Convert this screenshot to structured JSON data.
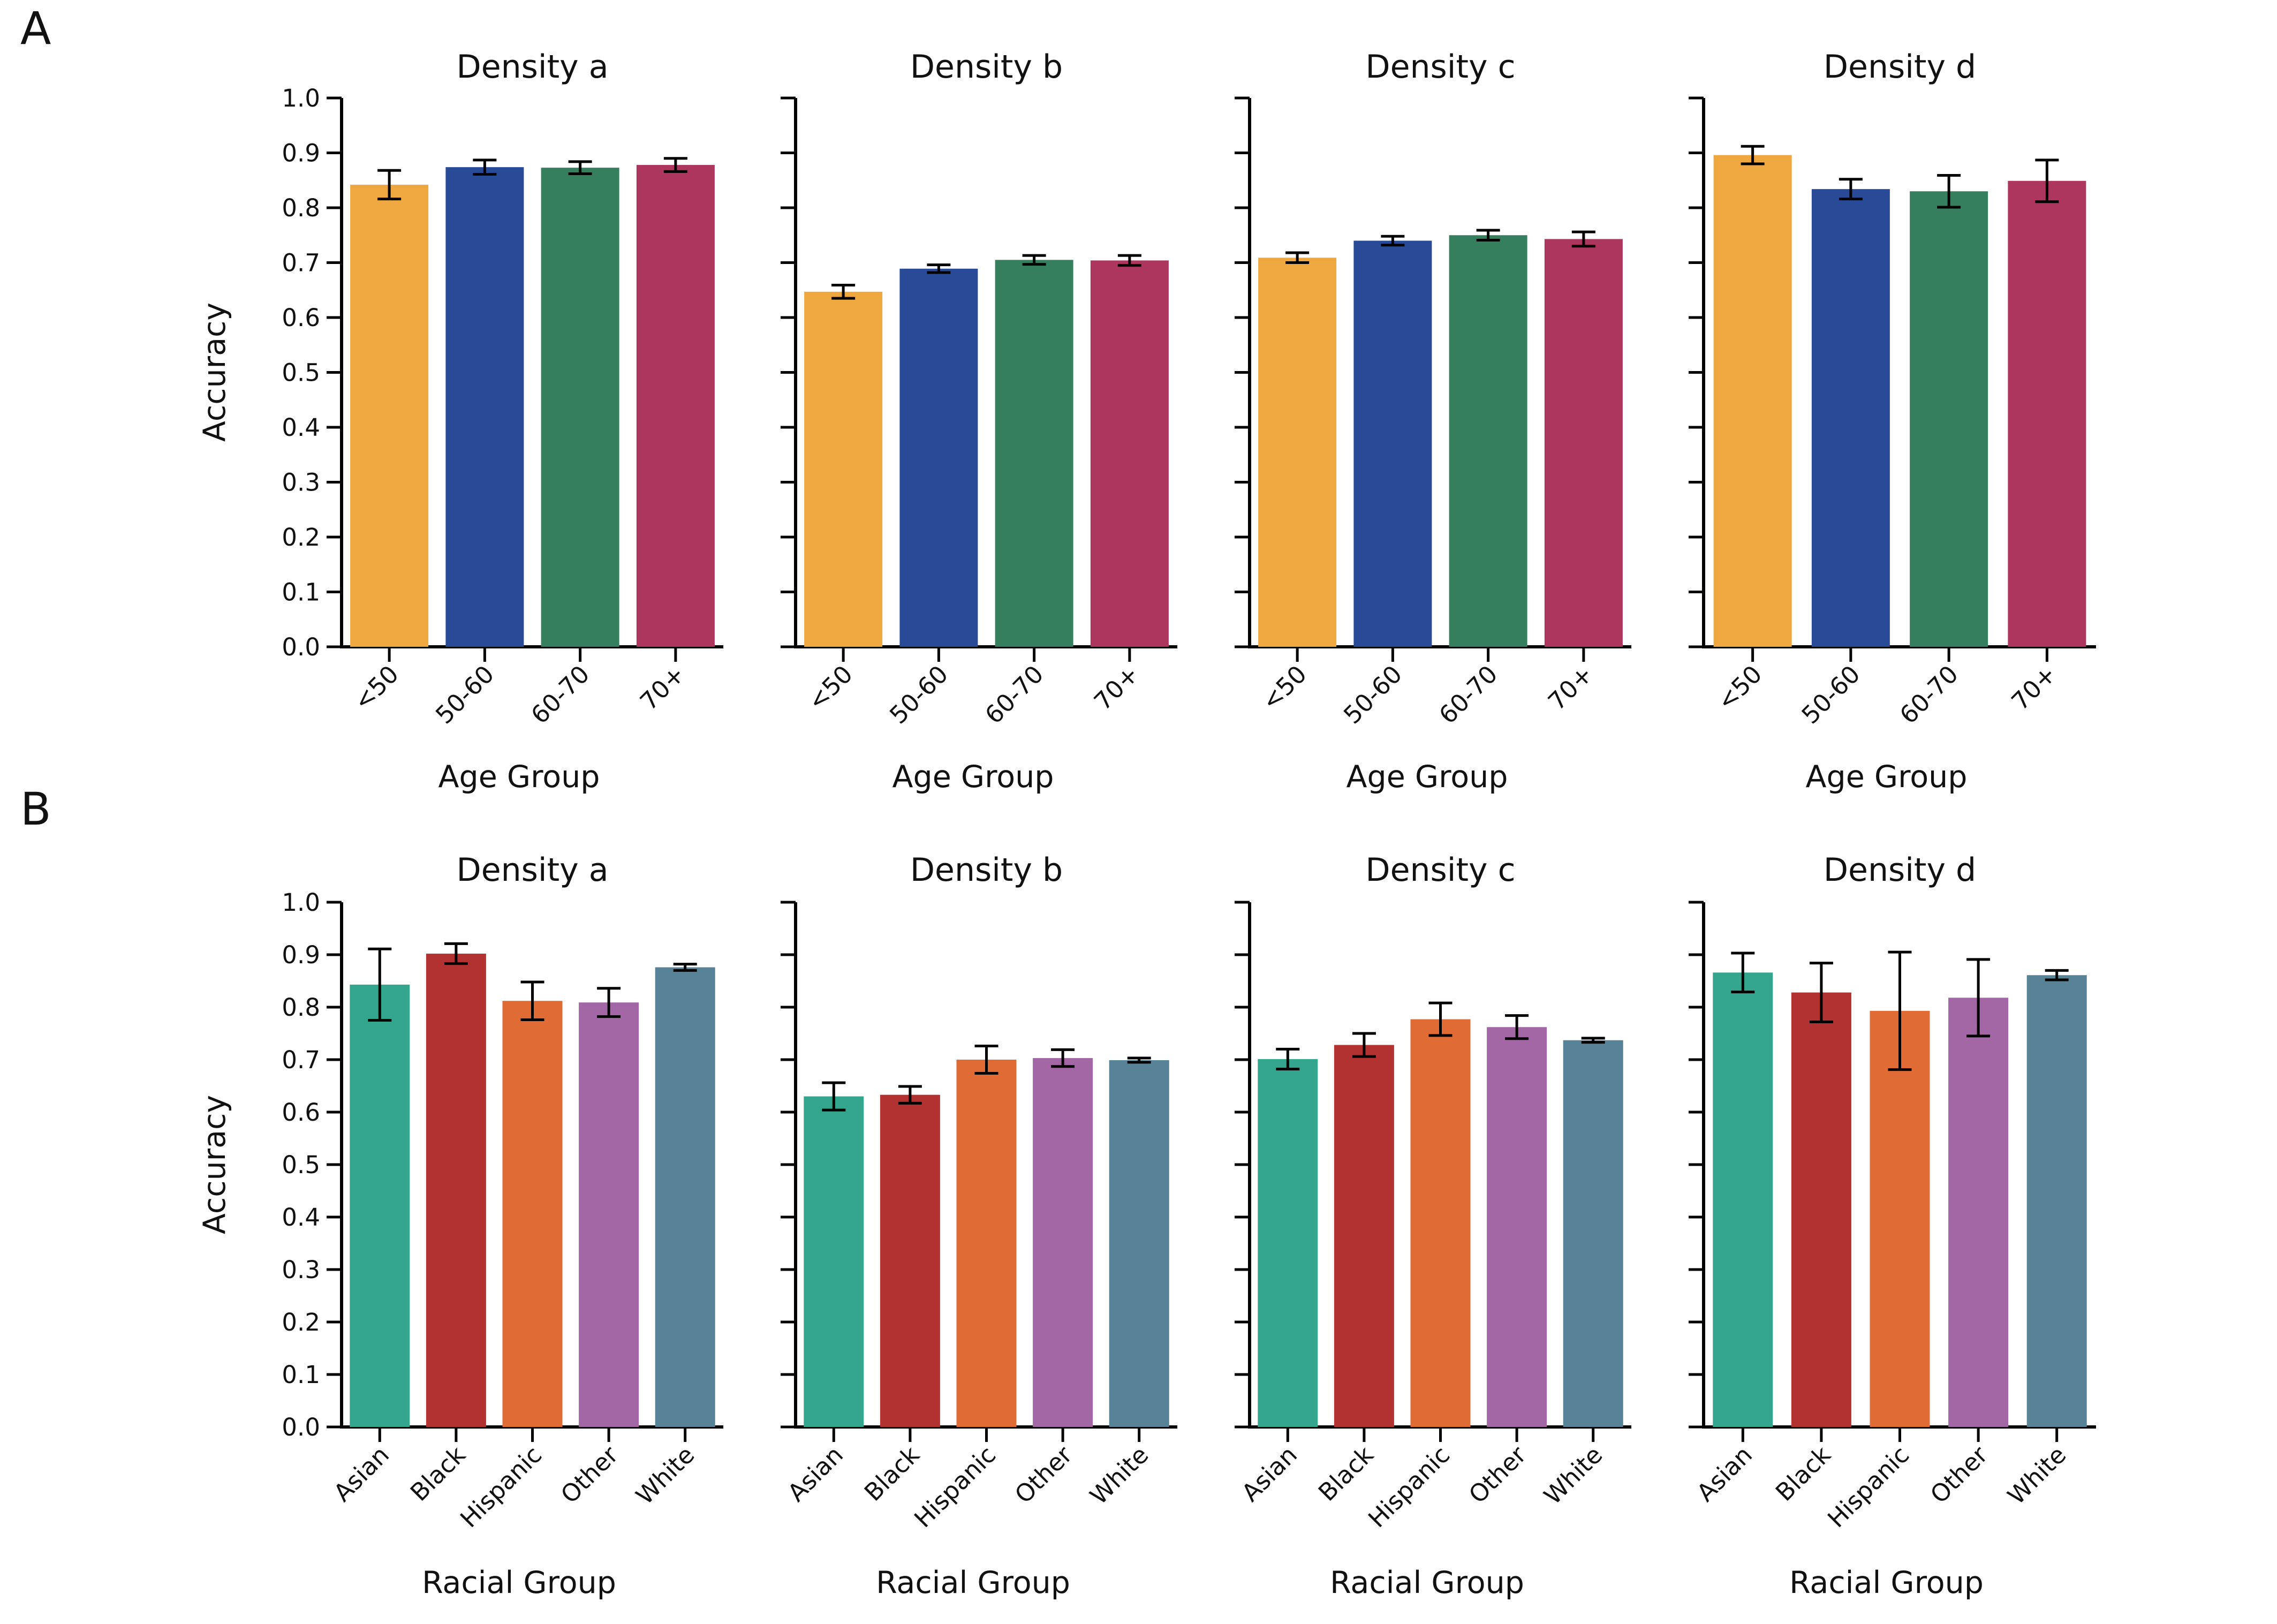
{
  "panels": [
    {
      "letter": "A",
      "xlabel": "Age Group",
      "ylabel": "Accuracy",
      "yticks": [
        "0.0",
        "0.1",
        "0.2",
        "0.3",
        "0.4",
        "0.5",
        "0.6",
        "0.7",
        "0.8",
        "0.9",
        "1.0"
      ]
    },
    {
      "letter": "B",
      "xlabel": "Racial Group",
      "ylabel": "Accuracy",
      "yticks": [
        "0.0",
        "0.1",
        "0.2",
        "0.3",
        "0.4",
        "0.5",
        "0.6",
        "0.7",
        "0.8",
        "0.9",
        "1.0"
      ]
    }
  ],
  "chart_data": [
    {
      "type": "bar",
      "panel": "A",
      "title": "Density a",
      "xlabel": "Age Group",
      "ylabel": "Accuracy",
      "ylim": [
        0,
        1
      ],
      "categories": [
        "<50",
        "50-60",
        "60-70",
        "70+"
      ],
      "values": [
        0.842,
        0.874,
        0.873,
        0.878
      ],
      "errors": [
        0.026,
        0.013,
        0.011,
        0.012
      ],
      "colors": [
        "#EFA740",
        "#284A97",
        "#367F5E",
        "#AD365E"
      ]
    },
    {
      "type": "bar",
      "panel": "A",
      "title": "Density b",
      "xlabel": "Age Group",
      "ylabel": "Accuracy",
      "ylim": [
        0,
        1
      ],
      "categories": [
        "<50",
        "50-60",
        "60-70",
        "70+"
      ],
      "values": [
        0.647,
        0.689,
        0.705,
        0.704
      ],
      "errors": [
        0.012,
        0.007,
        0.008,
        0.009
      ],
      "colors": [
        "#EFA740",
        "#284A97",
        "#367F5E",
        "#AD365E"
      ]
    },
    {
      "type": "bar",
      "panel": "A",
      "title": "Density c",
      "xlabel": "Age Group",
      "ylabel": "Accuracy",
      "ylim": [
        0,
        1
      ],
      "categories": [
        "<50",
        "50-60",
        "60-70",
        "70+"
      ],
      "values": [
        0.709,
        0.74,
        0.75,
        0.743
      ],
      "errors": [
        0.009,
        0.008,
        0.009,
        0.013
      ],
      "colors": [
        "#EFA740",
        "#284A97",
        "#367F5E",
        "#AD365E"
      ]
    },
    {
      "type": "bar",
      "panel": "A",
      "title": "Density d",
      "xlabel": "Age Group",
      "ylabel": "Accuracy",
      "ylim": [
        0,
        1
      ],
      "categories": [
        "<50",
        "50-60",
        "60-70",
        "70+"
      ],
      "values": [
        0.896,
        0.834,
        0.83,
        0.849
      ],
      "errors": [
        0.016,
        0.018,
        0.029,
        0.038
      ],
      "colors": [
        "#EFA740",
        "#284A97",
        "#367F5E",
        "#AD365E"
      ]
    },
    {
      "type": "bar",
      "panel": "B",
      "title": "Density a",
      "xlabel": "Racial Group",
      "ylabel": "Accuracy",
      "ylim": [
        0,
        1
      ],
      "categories": [
        "Asian",
        "Black",
        "Hispanic",
        "Other",
        "White"
      ],
      "values": [
        0.843,
        0.902,
        0.812,
        0.809,
        0.876
      ],
      "errors": [
        0.068,
        0.019,
        0.036,
        0.027,
        0.006
      ],
      "colors": [
        "#33A68D",
        "#B23231",
        "#E06B35",
        "#A267A4",
        "#588296"
      ]
    },
    {
      "type": "bar",
      "panel": "B",
      "title": "Density b",
      "xlabel": "Racial Group",
      "ylabel": "Accuracy",
      "ylim": [
        0,
        1
      ],
      "categories": [
        "Asian",
        "Black",
        "Hispanic",
        "Other",
        "White"
      ],
      "values": [
        0.63,
        0.633,
        0.7,
        0.703,
        0.699
      ],
      "errors": [
        0.026,
        0.016,
        0.026,
        0.016,
        0.004
      ],
      "colors": [
        "#33A68D",
        "#B23231",
        "#E06B35",
        "#A267A4",
        "#588296"
      ]
    },
    {
      "type": "bar",
      "panel": "B",
      "title": "Density c",
      "xlabel": "Racial Group",
      "ylabel": "Accuracy",
      "ylim": [
        0,
        1
      ],
      "categories": [
        "Asian",
        "Black",
        "Hispanic",
        "Other",
        "White"
      ],
      "values": [
        0.701,
        0.728,
        0.777,
        0.762,
        0.737
      ],
      "errors": [
        0.019,
        0.022,
        0.031,
        0.022,
        0.004
      ],
      "colors": [
        "#33A68D",
        "#B23231",
        "#E06B35",
        "#A267A4",
        "#588296"
      ]
    },
    {
      "type": "bar",
      "panel": "B",
      "title": "Density d",
      "xlabel": "Racial Group",
      "ylabel": "Accuracy",
      "ylim": [
        0,
        1
      ],
      "categories": [
        "Asian",
        "Black",
        "Hispanic",
        "Other",
        "White"
      ],
      "values": [
        0.866,
        0.828,
        0.793,
        0.818,
        0.861
      ],
      "errors": [
        0.037,
        0.056,
        0.112,
        0.073,
        0.009
      ],
      "colors": [
        "#33A68D",
        "#B23231",
        "#E06B35",
        "#A267A4",
        "#588296"
      ]
    }
  ]
}
